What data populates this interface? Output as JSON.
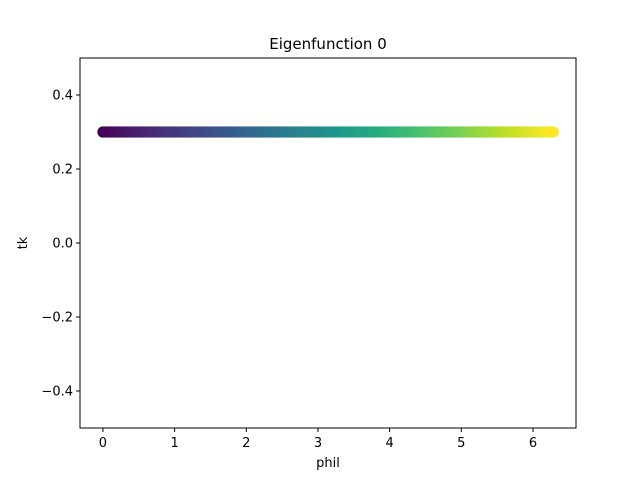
{
  "chart_data": {
    "type": "scatter",
    "title": "Eigenfunction 0",
    "xlabel": "phil",
    "ylabel": "tk",
    "xlim": [
      -0.32,
      6.6
    ],
    "ylim": [
      -0.5,
      0.5
    ],
    "x_ticks": [
      0,
      1,
      2,
      3,
      4,
      5,
      6
    ],
    "x_tick_labels": [
      "0",
      "1",
      "2",
      "3",
      "4",
      "5",
      "6"
    ],
    "y_ticks": [
      -0.4,
      -0.2,
      0.0,
      0.2,
      0.4
    ],
    "y_tick_labels": [
      "−0.4",
      "−0.2",
      "0.0",
      "0.2",
      "0.4"
    ],
    "grid": false,
    "colormap": "viridis",
    "color_by": "x",
    "series": [
      {
        "x_start": 0,
        "x_end": 6.283,
        "num_points": 200,
        "y_constant": 0.3
      }
    ]
  }
}
